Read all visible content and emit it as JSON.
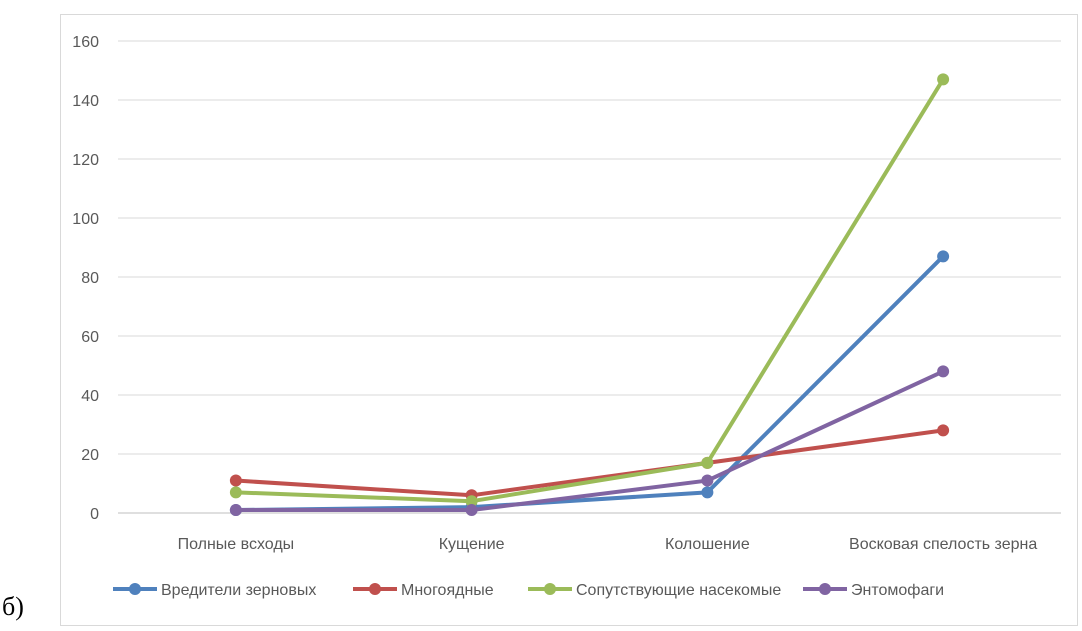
{
  "panel_label": "б)",
  "chart_data": {
    "type": "line",
    "categories": [
      "Полные всходы",
      "Кущение",
      "Колошение",
      "Восковая спелость зерна"
    ],
    "ylim": [
      0,
      160
    ],
    "yticks": [
      0,
      20,
      40,
      60,
      80,
      100,
      120,
      140,
      160
    ],
    "grid": true,
    "legend_position": "bottom",
    "series": [
      {
        "name": "Вредители зерновых",
        "color": "#4f81bd",
        "values": [
          1,
          2,
          7,
          87
        ]
      },
      {
        "name": "Многоядные",
        "color": "#c0504d",
        "values": [
          11,
          6,
          17,
          28
        ]
      },
      {
        "name": "Сопутствующие насекомые",
        "color": "#9bbb59",
        "values": [
          7,
          4,
          17,
          147
        ]
      },
      {
        "name": "Энтомофаги",
        "color": "#8064a2",
        "values": [
          1,
          1,
          11,
          48
        ]
      }
    ]
  }
}
